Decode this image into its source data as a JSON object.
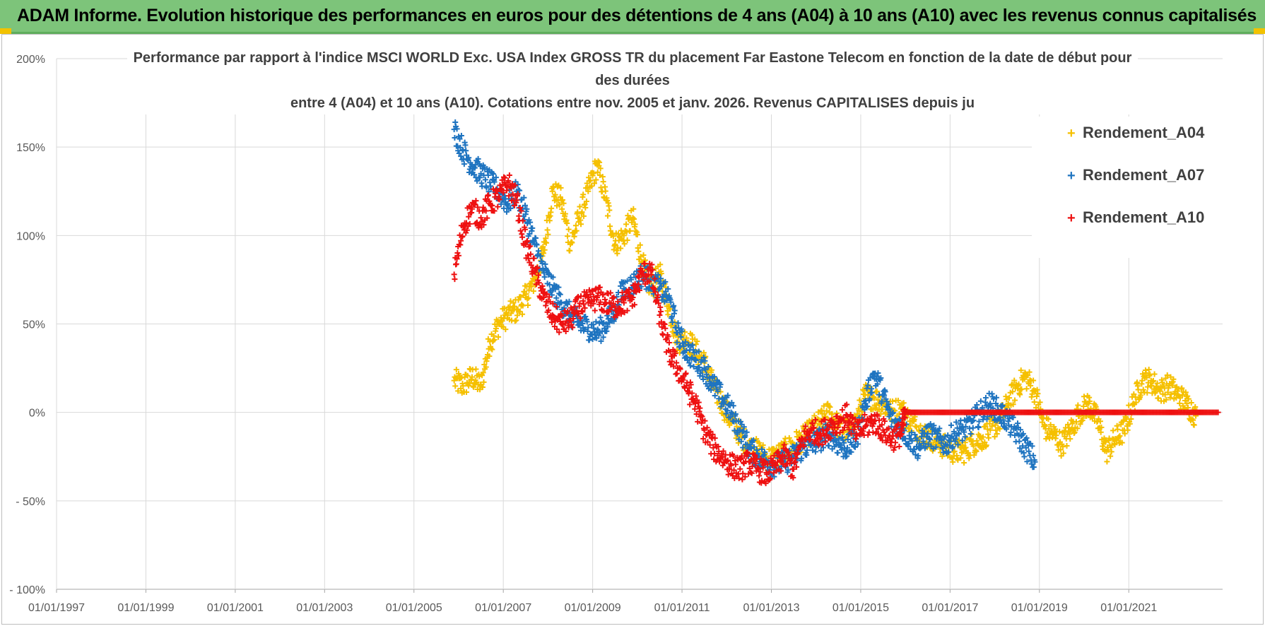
{
  "banner": {
    "title": "ADAM Informe. Evolution historique des performances en euros pour des détentions de 4 ans (A04) à 10 ans (A10) avec les revenus connus capitalisés"
  },
  "chart": {
    "title_lines": [
      "Performance par rapport à l'indice MSCI WORLD Exc. USA Index GROSS TR  du placement Far Eastone Telecom  en fonction de la date de début pour",
      "des durées",
      "entre 4 (A04) et 10 ans (A10).  Cotations entre nov. 2005 et janv. 2026. Revenus CAPITALISES depuis ju"
    ]
  },
  "legend": [
    {
      "label": "Rendement_A04",
      "color": "#f5c000",
      "marker": "+"
    },
    {
      "label": "Rendement_A07",
      "color": "#1f74c0",
      "marker": "+"
    },
    {
      "label": "Rendement_A10",
      "color": "#ee1111",
      "marker": "+"
    }
  ],
  "chart_data": {
    "type": "scatter",
    "title": "Performance par rapport à l'indice MSCI WORLD Exc. USA Index GROSS TR  du placement Far Eastone Telecom  en fonction de la date de début pour des durées entre 4 (A04) et 10 ans (A10).  Cotations entre nov. 2005 et janv. 2026. Revenus CAPITALISES depuis ju",
    "xlabel": "",
    "ylabel": "",
    "x_ticks": [
      "01/01/1997",
      "01/01/1999",
      "01/01/2001",
      "01/01/2003",
      "01/01/2005",
      "01/01/2007",
      "01/01/2009",
      "01/01/2011",
      "01/01/2013",
      "01/01/2015",
      "01/01/2017",
      "01/01/2019",
      "01/01/2021"
    ],
    "y_ticks": [
      "200%",
      "150%",
      "100%",
      "50%",
      "0%",
      "- 50%",
      "- 100%"
    ],
    "xlim": [
      1997.0,
      2023.1
    ],
    "ylim": [
      -100,
      200
    ],
    "grid": true,
    "legend_position": "top-right",
    "series": [
      {
        "name": "Rendement_A04",
        "color": "#f5c000",
        "x": [
          2005.9,
          2006.1,
          2006.3,
          2006.5,
          2006.7,
          2006.9,
          2007.1,
          2007.3,
          2007.5,
          2007.7,
          2007.9,
          2008.1,
          2008.3,
          2008.5,
          2008.7,
          2008.9,
          2009.1,
          2009.3,
          2009.5,
          2009.7,
          2009.9,
          2010.1,
          2010.3,
          2010.5,
          2010.7,
          2010.9,
          2011.1,
          2011.3,
          2011.5,
          2011.7,
          2011.9,
          2012.1,
          2012.3,
          2012.5,
          2012.7,
          2012.9,
          2013.1,
          2013.3,
          2013.5,
          2013.7,
          2013.9,
          2014.1,
          2014.3,
          2014.5,
          2014.7,
          2014.9,
          2015.1,
          2015.3,
          2015.5,
          2015.7,
          2015.9,
          2016.1,
          2016.3,
          2016.5,
          2016.7,
          2016.9,
          2017.1,
          2017.3,
          2017.5,
          2017.7,
          2017.9,
          2018.1,
          2018.3,
          2018.5,
          2018.7,
          2018.9,
          2019.1,
          2019.3,
          2019.5,
          2019.7,
          2019.9,
          2020.1,
          2020.3,
          2020.5,
          2020.7,
          2020.9,
          2021.1,
          2021.3,
          2021.5,
          2021.7,
          2021.9,
          2022.1,
          2022.3,
          2022.5
        ],
        "y": [
          18,
          15,
          20,
          15,
          40,
          50,
          55,
          58,
          65,
          75,
          90,
          125,
          120,
          95,
          110,
          125,
          140,
          120,
          95,
          100,
          110,
          85,
          70,
          78,
          60,
          40,
          42,
          35,
          28,
          15,
          5,
          -5,
          -12,
          -20,
          -22,
          -26,
          -25,
          -22,
          -18,
          -15,
          -10,
          -5,
          0,
          -8,
          -10,
          -5,
          10,
          8,
          5,
          0,
          2,
          -5,
          -10,
          -14,
          -16,
          -20,
          -22,
          -22,
          -18,
          -15,
          -10,
          -5,
          5,
          15,
          20,
          12,
          -8,
          -12,
          -18,
          -10,
          0,
          5,
          -5,
          -22,
          -15,
          -10,
          5,
          18,
          18,
          12,
          15,
          10,
          5,
          -2
        ]
      },
      {
        "name": "Rendement_A07",
        "color": "#1f74c0",
        "x": [
          2005.9,
          2006.1,
          2006.3,
          2006.5,
          2006.7,
          2006.9,
          2007.1,
          2007.3,
          2007.5,
          2007.7,
          2007.9,
          2008.1,
          2008.3,
          2008.5,
          2008.7,
          2008.9,
          2009.1,
          2009.3,
          2009.5,
          2009.7,
          2009.9,
          2010.1,
          2010.3,
          2010.5,
          2010.7,
          2010.9,
          2011.1,
          2011.3,
          2011.5,
          2011.7,
          2011.9,
          2012.1,
          2012.3,
          2012.5,
          2012.7,
          2012.9,
          2013.1,
          2013.3,
          2013.5,
          2013.7,
          2013.9,
          2014.1,
          2014.3,
          2014.5,
          2014.7,
          2014.9,
          2015.1,
          2015.3,
          2015.5,
          2015.7,
          2015.9,
          2016.1,
          2016.3,
          2016.5,
          2016.7,
          2016.9,
          2017.1,
          2017.3,
          2017.5,
          2017.7,
          2017.9,
          2018.1,
          2018.3,
          2018.5,
          2018.7,
          2018.9
        ],
        "y": [
          160,
          148,
          140,
          135,
          130,
          125,
          118,
          125,
          112,
          95,
          80,
          70,
          62,
          55,
          50,
          48,
          45,
          50,
          58,
          70,
          72,
          78,
          75,
          70,
          65,
          45,
          35,
          30,
          25,
          15,
          8,
          0,
          -10,
          -20,
          -25,
          -28,
          -30,
          -28,
          -25,
          -20,
          -18,
          -15,
          -12,
          -18,
          -20,
          -15,
          5,
          22,
          10,
          -5,
          -8,
          -15,
          -20,
          -12,
          -15,
          -18,
          -12,
          -10,
          -5,
          0,
          5,
          0,
          -5,
          -12,
          -20,
          -28
        ]
      },
      {
        "name": "Rendement_A10",
        "color": "#ee1111",
        "x": [
          2005.9,
          2006.1,
          2006.3,
          2006.5,
          2006.7,
          2006.9,
          2007.1,
          2007.3,
          2007.5,
          2007.7,
          2007.9,
          2008.1,
          2008.3,
          2008.5,
          2008.7,
          2008.9,
          2009.1,
          2009.3,
          2009.5,
          2009.7,
          2009.9,
          2010.1,
          2010.3,
          2010.5,
          2010.7,
          2010.9,
          2011.1,
          2011.3,
          2011.5,
          2011.7,
          2011.9,
          2012.1,
          2012.3,
          2012.5,
          2012.7,
          2012.9,
          2013.1,
          2013.3,
          2013.5,
          2013.7,
          2013.9,
          2014.1,
          2014.3,
          2014.5,
          2014.7,
          2014.9,
          2015.1,
          2015.3,
          2015.5,
          2015.7,
          2015.9,
          2016.0,
          2016.5,
          2017.0,
          2017.5,
          2018.0,
          2018.5,
          2019.0,
          2019.5,
          2020.0,
          2020.5,
          2021.0,
          2021.5,
          2022.0,
          2022.5,
          2023.0
        ],
        "y": [
          78,
          105,
          115,
          110,
          118,
          122,
          130,
          120,
          95,
          80,
          65,
          55,
          50,
          52,
          60,
          62,
          65,
          62,
          60,
          62,
          65,
          78,
          80,
          55,
          35,
          25,
          15,
          5,
          -10,
          -20,
          -25,
          -30,
          -32,
          -28,
          -32,
          -35,
          -30,
          -25,
          -32,
          -15,
          -10,
          -12,
          -8,
          -5,
          -2,
          -12,
          -8,
          -5,
          -10,
          -15,
          -12,
          0,
          0,
          0,
          0,
          0,
          0,
          0,
          0,
          0,
          0,
          0,
          0,
          0,
          0,
          0
        ]
      }
    ]
  }
}
